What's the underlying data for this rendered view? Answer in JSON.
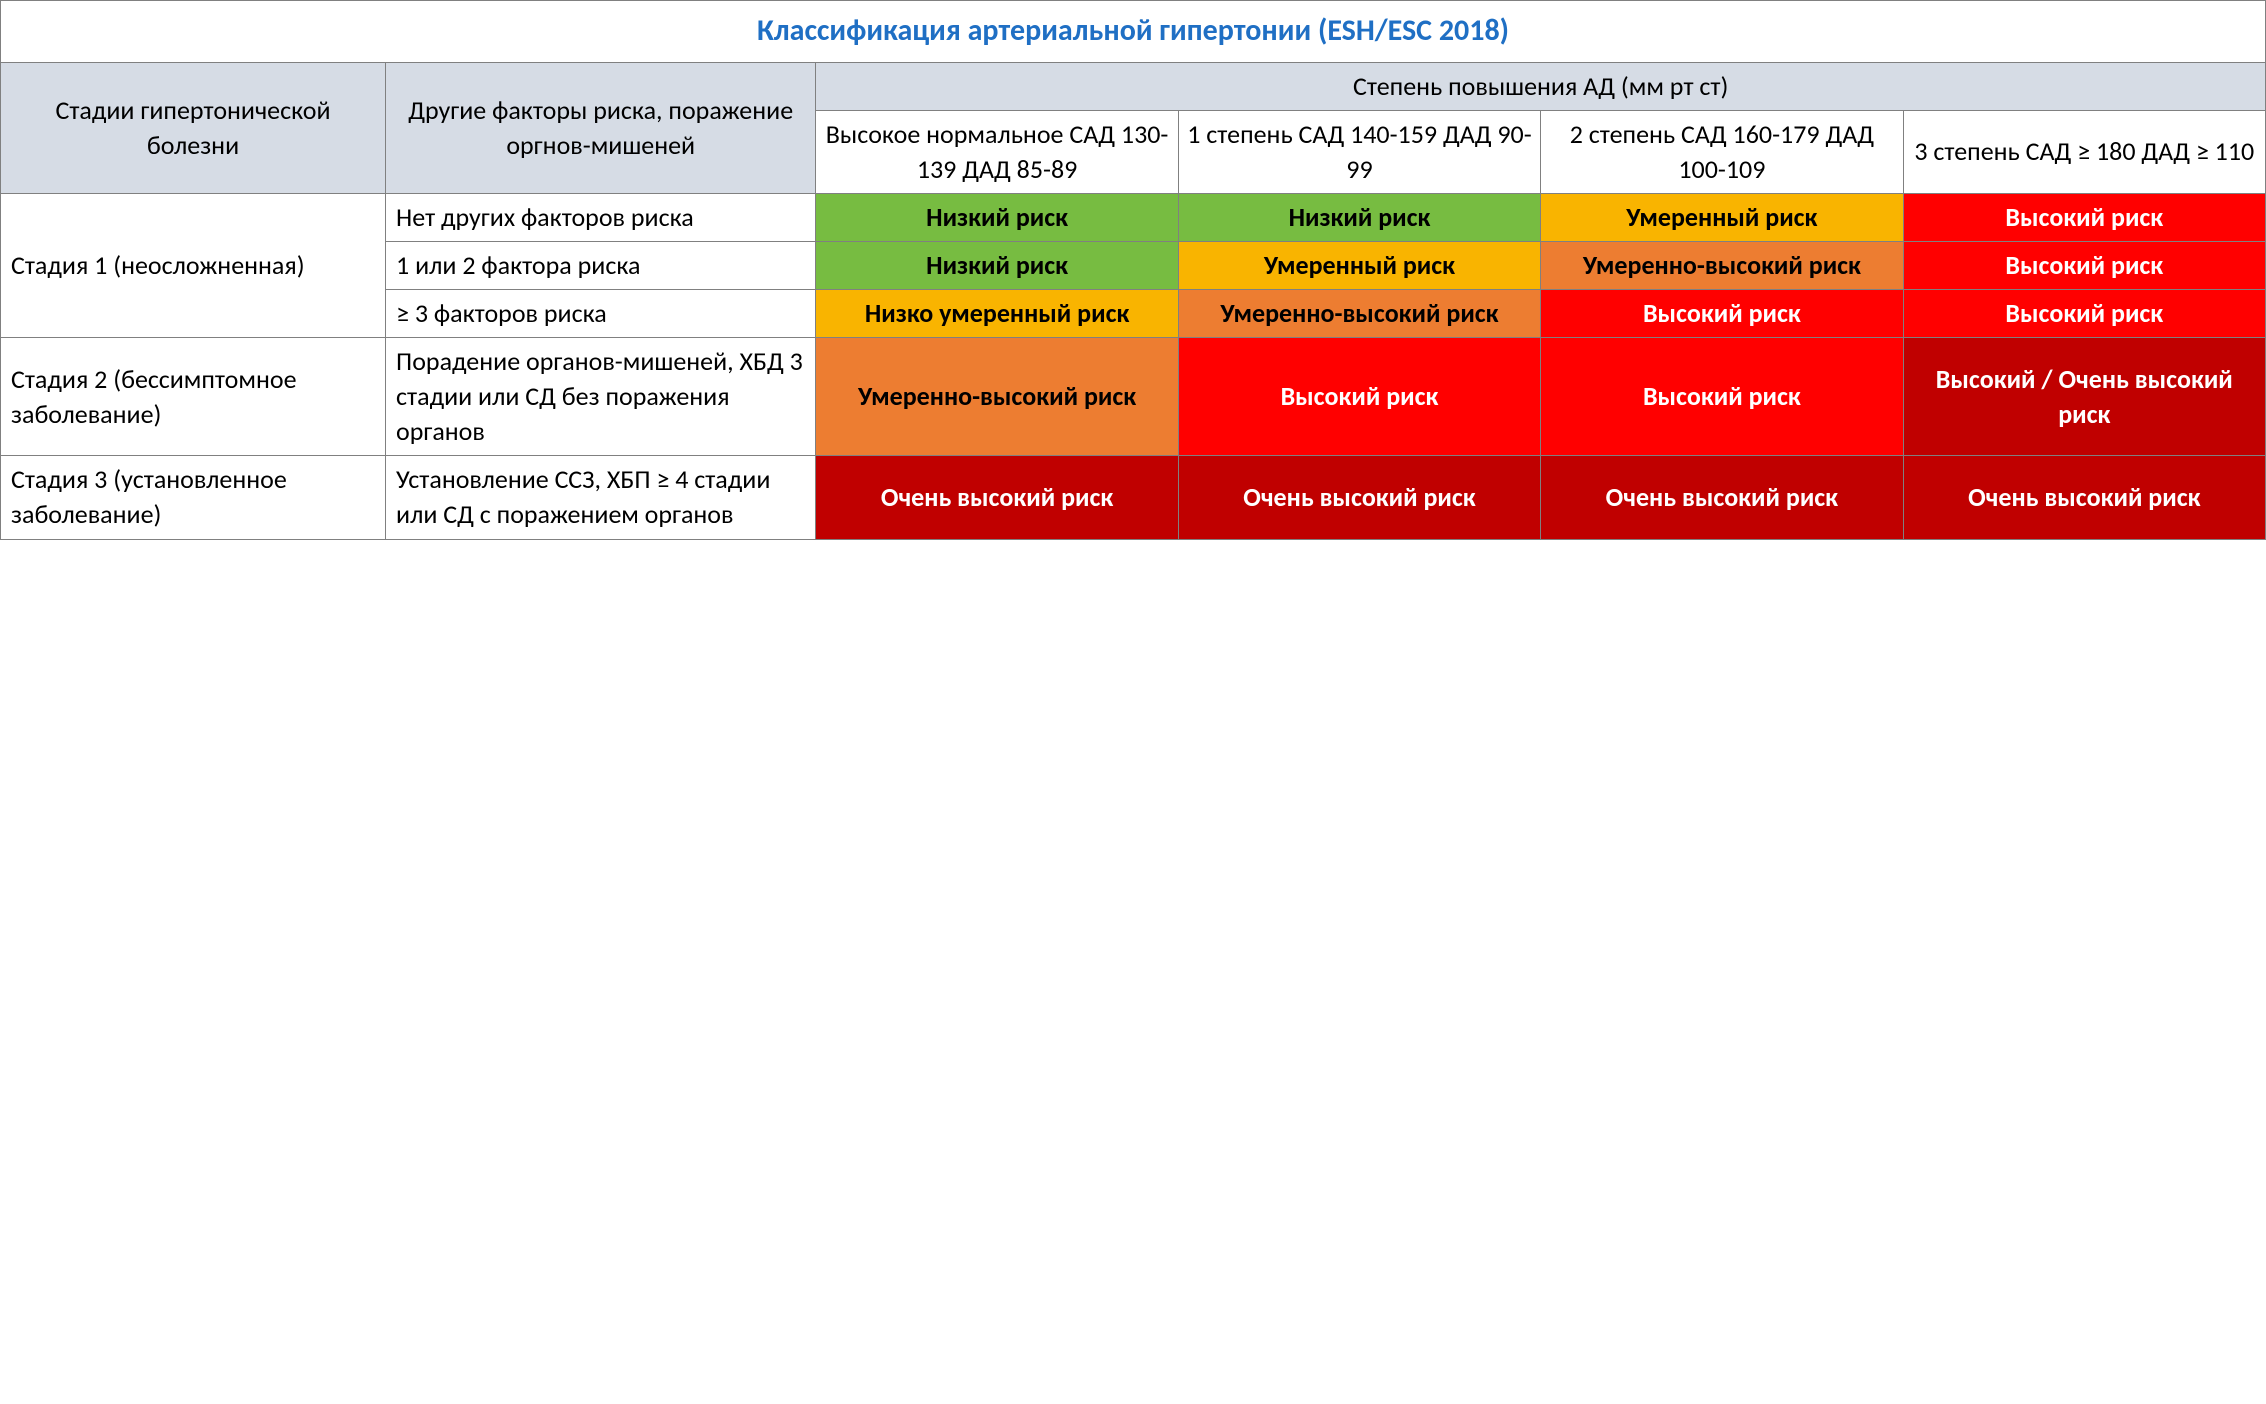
{
  "title": "Классификация артериальной гипертонии (ESH/ESC 2018)",
  "colors": {
    "title_text": "#1f6fc4",
    "header_bg": "#d6dce5",
    "border": "#808080",
    "low": "#77bc41",
    "moderate": "#f9b400",
    "mod_high": "#ed7d31",
    "high": "#ff0000",
    "very_high": "#c00000",
    "text_dark": "#000000",
    "text_light": "#ffffff"
  },
  "headers": {
    "stage": "Стадии гипертонической болезни",
    "factors": "Другие факторы риска, поражение оргнов-мишеней",
    "bp_group": "Степень повышения АД (мм рт ст)",
    "bp_cols": [
      "Высокое нормальное САД 130-139 ДАД 85-89",
      "1 степень САД 140-159 ДАД 90-99",
      "2 степень САД 160-179 ДАД 100-109",
      "3 степень САД ≥ 180 ДАД ≥ 110"
    ]
  },
  "stages": [
    {
      "label": "Стадия 1 (неосложненная)",
      "rows": [
        {
          "factor": "Нет других факторов риска",
          "cells": [
            {
              "text": "Низкий риск",
              "bg": "#77bc41",
              "fg": "#000000"
            },
            {
              "text": "Низкий риск",
              "bg": "#77bc41",
              "fg": "#000000"
            },
            {
              "text": "Умеренный риск",
              "bg": "#f9b400",
              "fg": "#000000"
            },
            {
              "text": "Высокий риск",
              "bg": "#ff0000",
              "fg": "#ffffff"
            }
          ]
        },
        {
          "factor": "1 или 2 фактора риска",
          "cells": [
            {
              "text": "Низкий риск",
              "bg": "#77bc41",
              "fg": "#000000"
            },
            {
              "text": "Умеренный риск",
              "bg": "#f9b400",
              "fg": "#000000"
            },
            {
              "text": "Умеренно-высокий риск",
              "bg": "#ed7d31",
              "fg": "#000000"
            },
            {
              "text": "Высокий риск",
              "bg": "#ff0000",
              "fg": "#ffffff"
            }
          ]
        },
        {
          "factor": "≥ 3 факторов риска",
          "cells": [
            {
              "text": "Низко умеренный риск",
              "bg": "#f9b400",
              "fg": "#000000"
            },
            {
              "text": "Умеренно-высокий риск",
              "bg": "#ed7d31",
              "fg": "#000000"
            },
            {
              "text": "Высокий риск",
              "bg": "#ff0000",
              "fg": "#ffffff"
            },
            {
              "text": "Высокий риск",
              "bg": "#ff0000",
              "fg": "#ffffff"
            }
          ]
        }
      ]
    },
    {
      "label": "Стадия 2 (бессимптомное заболевание)",
      "rows": [
        {
          "factor": "Порадение органов-мишеней, ХБД 3 стадии или СД без поражения органов",
          "cells": [
            {
              "text": "Умеренно-высокий риск",
              "bg": "#ed7d31",
              "fg": "#000000"
            },
            {
              "text": "Высокий риск",
              "bg": "#ff0000",
              "fg": "#ffffff"
            },
            {
              "text": "Высокий риск",
              "bg": "#ff0000",
              "fg": "#ffffff"
            },
            {
              "text": "Высокий / Очень высокий риск",
              "bg": "#c00000",
              "fg": "#ffffff"
            }
          ]
        }
      ]
    },
    {
      "label": "Стадия 3 (установленное заболевание)",
      "rows": [
        {
          "factor": "Установление ССЗ, ХБП ≥ 4 стадии или СД с поражением органов",
          "cells": [
            {
              "text": "Очень высокий риск",
              "bg": "#c00000",
              "fg": "#ffffff"
            },
            {
              "text": "Очень высокий риск",
              "bg": "#c00000",
              "fg": "#ffffff"
            },
            {
              "text": "Очень высокий риск",
              "bg": "#c00000",
              "fg": "#ffffff"
            },
            {
              "text": "Очень высокий риск",
              "bg": "#c00000",
              "fg": "#ffffff"
            }
          ]
        }
      ]
    }
  ]
}
